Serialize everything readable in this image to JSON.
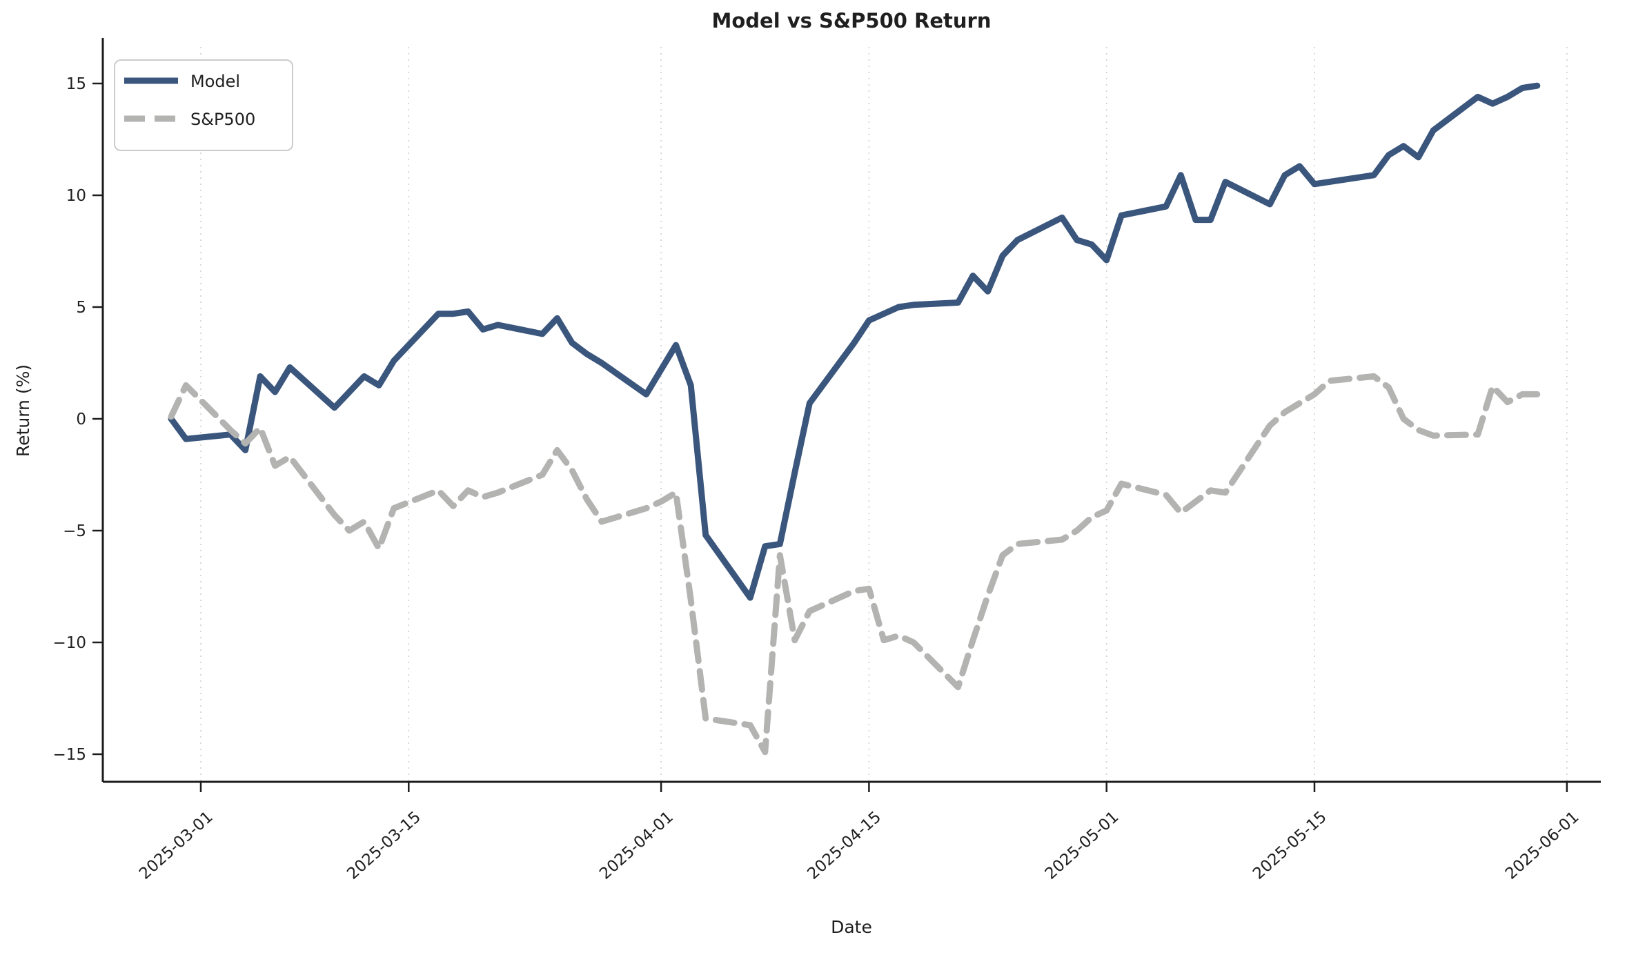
{
  "title": "Model vs S&P500 Return",
  "axes": {
    "xlabel": "Date",
    "ylabel": "Return (%)"
  },
  "legend": {
    "items": [
      {
        "label": "Model",
        "style": "solid"
      },
      {
        "label": "S&P500",
        "style": "dashed"
      }
    ]
  },
  "colors": {
    "model": "#3a567d",
    "sp500": "#b3b3b2",
    "grid": "#cfcfcf",
    "spine": "#1c1c1c",
    "text": "#1f1f1f",
    "legend_border": "#cccccc"
  },
  "y_ticks": [
    {
      "value": 15,
      "label": "15"
    },
    {
      "value": 10,
      "label": "10"
    },
    {
      "value": 5,
      "label": "5"
    },
    {
      "value": 0,
      "label": "0"
    },
    {
      "value": -5,
      "label": "−5"
    },
    {
      "value": -10,
      "label": "−10"
    },
    {
      "value": -15,
      "label": "−15"
    }
  ],
  "x_ticks": [
    {
      "date": "2025-03-01",
      "label": "2025-03-01"
    },
    {
      "date": "2025-03-15",
      "label": "2025-03-15"
    },
    {
      "date": "2025-04-01",
      "label": "2025-04-01"
    },
    {
      "date": "2025-04-15",
      "label": "2025-04-15"
    },
    {
      "date": "2025-05-01",
      "label": "2025-05-01"
    },
    {
      "date": "2025-05-15",
      "label": "2025-05-15"
    },
    {
      "date": "2025-06-01",
      "label": "2025-06-01"
    }
  ],
  "chart_data": {
    "type": "line",
    "title": "Model vs S&P500 Return",
    "xlabel": "Date",
    "ylabel": "Return (%)",
    "ylim": [
      -16.3,
      17.0
    ],
    "xlim": [
      "2025-02-22",
      "2025-06-03"
    ],
    "grid": "vertical-dotted",
    "legend_position": "upper left",
    "x": [
      "2025-02-27",
      "2025-02-28",
      "2025-03-03",
      "2025-03-04",
      "2025-03-05",
      "2025-03-06",
      "2025-03-07",
      "2025-03-10",
      "2025-03-11",
      "2025-03-12",
      "2025-03-13",
      "2025-03-14",
      "2025-03-17",
      "2025-03-18",
      "2025-03-19",
      "2025-03-20",
      "2025-03-21",
      "2025-03-24",
      "2025-03-25",
      "2025-03-26",
      "2025-03-27",
      "2025-03-28",
      "2025-03-31",
      "2025-04-01",
      "2025-04-02",
      "2025-04-03",
      "2025-04-04",
      "2025-04-07",
      "2025-04-08",
      "2025-04-09",
      "2025-04-10",
      "2025-04-11",
      "2025-04-14",
      "2025-04-15",
      "2025-04-16",
      "2025-04-17",
      "2025-04-18",
      "2025-04-21",
      "2025-04-22",
      "2025-04-23",
      "2025-04-24",
      "2025-04-25",
      "2025-04-28",
      "2025-04-29",
      "2025-04-30",
      "2025-05-01",
      "2025-05-02",
      "2025-05-05",
      "2025-05-06",
      "2025-05-07",
      "2025-05-08",
      "2025-05-09",
      "2025-05-12",
      "2025-05-13",
      "2025-05-14",
      "2025-05-15",
      "2025-05-16",
      "2025-05-19",
      "2025-05-20",
      "2025-05-21",
      "2025-05-22",
      "2025-05-23",
      "2025-05-26",
      "2025-05-27",
      "2025-05-28",
      "2025-05-29",
      "2025-05-30"
    ],
    "series": [
      {
        "name": "Model",
        "style": "solid",
        "values": [
          0.0,
          -0.9,
          -0.7,
          -1.4,
          1.9,
          1.2,
          2.3,
          0.5,
          1.2,
          1.9,
          1.5,
          2.6,
          4.7,
          4.7,
          4.8,
          4.0,
          4.2,
          3.8,
          4.5,
          3.4,
          2.9,
          2.5,
          1.1,
          2.2,
          3.3,
          1.5,
          -5.2,
          -8.0,
          -5.7,
          -5.6,
          -2.4,
          0.7,
          3.4,
          4.4,
          4.7,
          5.0,
          5.1,
          5.2,
          6.4,
          5.7,
          7.3,
          8.0,
          9.0,
          8.0,
          7.8,
          7.1,
          9.1,
          9.5,
          10.9,
          8.9,
          8.9,
          10.6,
          9.6,
          10.9,
          11.3,
          10.5,
          10.6,
          10.9,
          11.8,
          12.2,
          11.7,
          12.9,
          14.4,
          14.1,
          14.4,
          14.8,
          14.9
        ]
      },
      {
        "name": "S&P500",
        "style": "dashed",
        "values": [
          0.1,
          1.5,
          -0.5,
          -1.1,
          -0.4,
          -2.1,
          -1.7,
          -4.3,
          -5.0,
          -4.6,
          -5.8,
          -4.0,
          -3.2,
          -3.9,
          -3.2,
          -3.5,
          -3.3,
          -2.5,
          -1.4,
          -2.3,
          -3.6,
          -4.6,
          -4.0,
          -3.7,
          -3.3,
          -8.1,
          -13.4,
          -13.7,
          -14.9,
          -6.1,
          -9.9,
          -8.6,
          -7.7,
          -7.6,
          -9.9,
          -9.7,
          -10.0,
          -12.0,
          -9.9,
          -7.9,
          -6.1,
          -5.6,
          -5.4,
          -5.0,
          -4.4,
          -4.1,
          -2.9,
          -3.4,
          -4.2,
          -3.7,
          -3.2,
          -3.3,
          -0.3,
          0.3,
          0.7,
          1.1,
          1.7,
          1.9,
          1.4,
          0.0,
          -0.5,
          -0.75,
          -0.7,
          1.45,
          0.75,
          1.1,
          1.1
        ]
      }
    ]
  }
}
